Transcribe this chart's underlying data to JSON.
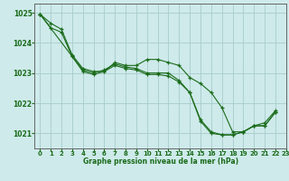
{
  "title": "Graphe pression niveau de la mer (hPa)",
  "bg_color": "#ceeaea",
  "grid_color": "#a8cccc",
  "line_color": "#1a6b1a",
  "marker_color": "#1a6b1a",
  "xlim": [
    -0.5,
    23
  ],
  "ylim": [
    1020.5,
    1025.3
  ],
  "yticks": [
    1021,
    1022,
    1023,
    1024,
    1025
  ],
  "xticks": [
    0,
    1,
    2,
    3,
    4,
    5,
    6,
    7,
    8,
    9,
    10,
    11,
    12,
    13,
    14,
    15,
    16,
    17,
    18,
    19,
    20,
    21,
    22,
    23
  ],
  "series": [
    {
      "x": [
        0,
        1,
        2,
        3,
        4,
        5,
        6,
        7,
        8,
        9,
        10,
        11,
        12,
        13,
        14,
        15,
        16,
        17,
        18,
        19,
        20,
        21,
        22
      ],
      "y": [
        1024.95,
        1024.65,
        1024.45,
        1023.6,
        1023.15,
        1023.05,
        1023.05,
        1023.35,
        1023.25,
        1023.25,
        1023.45,
        1023.45,
        1023.35,
        1023.25,
        1022.85,
        1022.65,
        1022.35,
        1021.85,
        1021.05,
        1021.05,
        1021.25,
        1021.35,
        1021.75
      ]
    },
    {
      "x": [
        0,
        3,
        4,
        5,
        6,
        7,
        8,
        9,
        10,
        11,
        12,
        13,
        14,
        15,
        16,
        17,
        18,
        19,
        20,
        21,
        22
      ],
      "y": [
        1024.95,
        1023.55,
        1023.1,
        1023.0,
        1023.1,
        1023.3,
        1023.2,
        1023.15,
        1023.0,
        1023.0,
        1023.0,
        1022.75,
        1022.35,
        1021.45,
        1021.05,
        1020.95,
        1020.95,
        1021.05,
        1021.25,
        1021.25,
        1021.7
      ]
    },
    {
      "x": [
        0,
        1,
        2,
        3,
        4,
        5,
        6,
        7,
        8,
        9,
        10,
        11,
        12,
        13,
        14,
        15,
        16,
        17,
        18,
        19,
        20,
        21,
        22
      ],
      "y": [
        1024.95,
        1024.5,
        1024.35,
        1023.55,
        1023.05,
        1022.95,
        1023.05,
        1023.25,
        1023.15,
        1023.1,
        1022.95,
        1022.95,
        1022.9,
        1022.7,
        1022.35,
        1021.4,
        1021.0,
        1020.95,
        1020.95,
        1021.05,
        1021.25,
        1021.25,
        1021.7
      ]
    }
  ]
}
